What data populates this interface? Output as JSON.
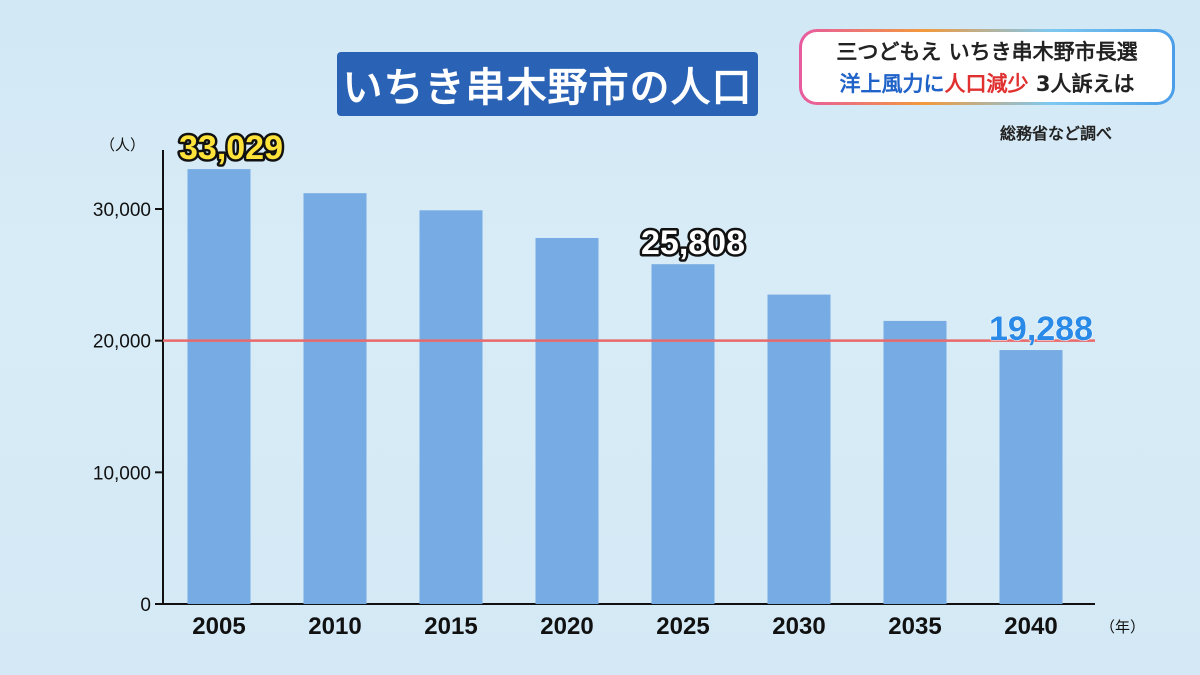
{
  "title": "いちき串木野市の人口",
  "news": {
    "line1": "三つどもえ いちき串木野市長選",
    "line2_a": "洋上風力に",
    "line2_b": "人口減少",
    "line2_c": " 3人訴えは"
  },
  "source": "総務省など調べ",
  "chart_data": {
    "type": "bar",
    "categories": [
      "2005",
      "2010",
      "2015",
      "2020",
      "2025",
      "2030",
      "2035",
      "2040"
    ],
    "values": [
      33029,
      31200,
      29900,
      27800,
      25808,
      23500,
      21500,
      19288
    ],
    "ylim": [
      0,
      35000
    ],
    "yticks": [
      0,
      10000,
      20000,
      30000
    ],
    "ytick_labels": [
      "0",
      "10,000",
      "20,000",
      "30,000"
    ],
    "y_unit": "（人）",
    "x_unit": "（年）",
    "reference_line": 20000,
    "bar_color": "#76abe3",
    "reference_line_color": "#e86a6a",
    "data_labels": [
      {
        "index": 0,
        "text": "33,029",
        "color": "#ffe23a"
      },
      {
        "index": 4,
        "text": "25,808",
        "color": "#ffffff"
      },
      {
        "index": 7,
        "text": "19,288",
        "color": "#2a8ae8"
      }
    ]
  }
}
